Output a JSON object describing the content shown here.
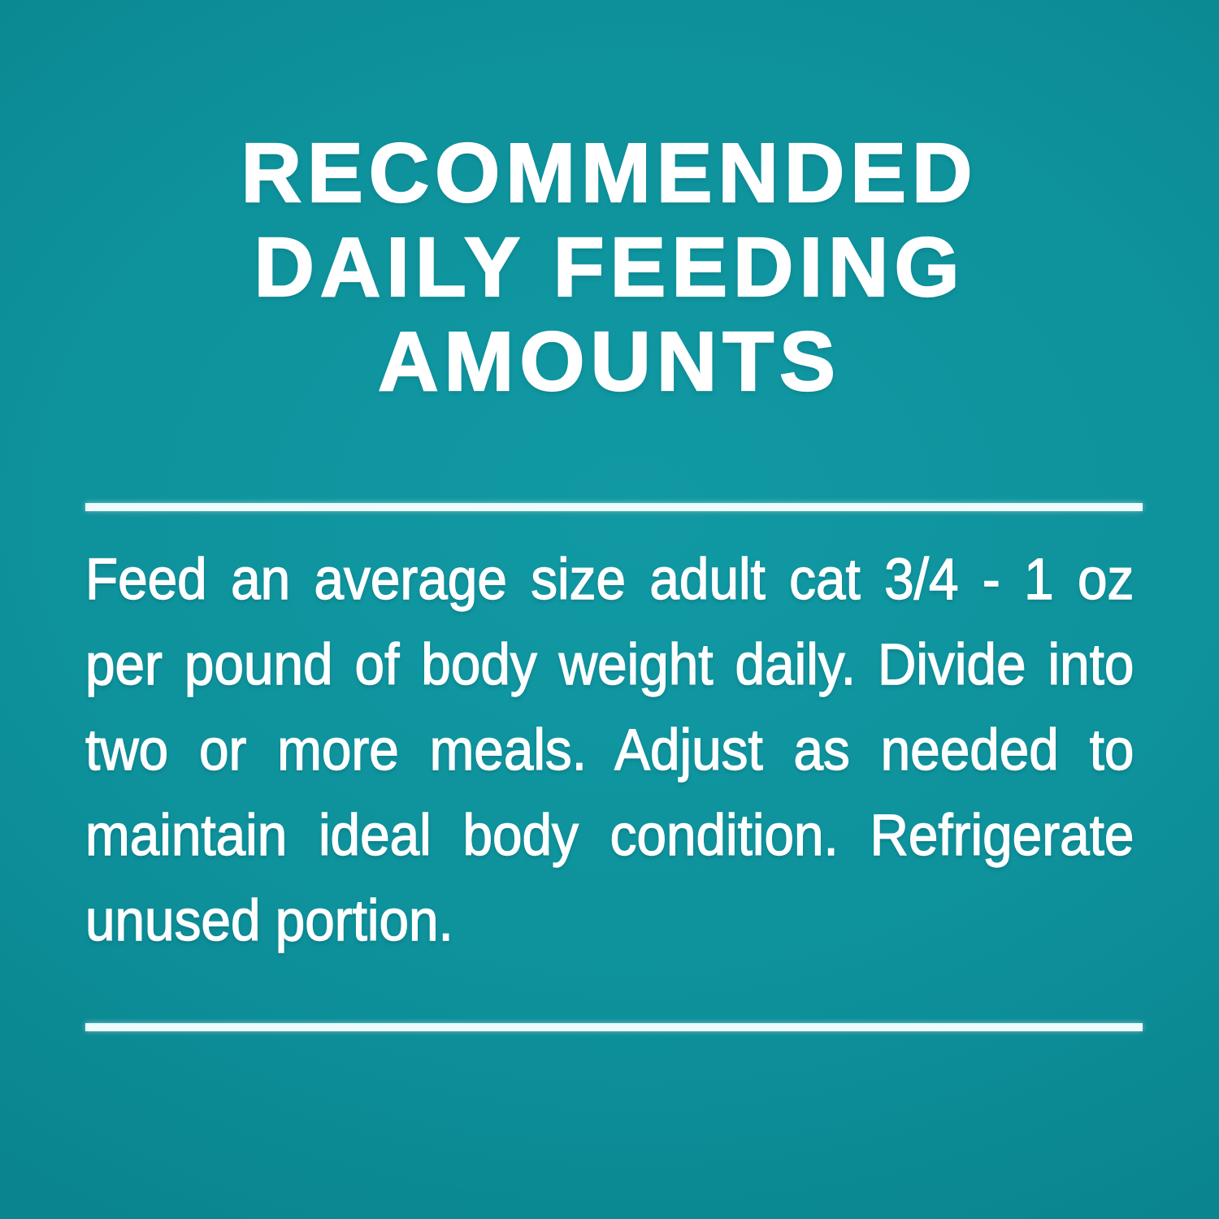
{
  "panel": {
    "background_color": "#0e929c",
    "background_highlight_color": "#1199a3",
    "background_edge_color": "#0a858f",
    "text_color": "#ffffff",
    "rule_color": "#eefcfd"
  },
  "title": {
    "lines": [
      "RECOMMENDED",
      "DAILY FEEDING",
      "AMOUNTS"
    ]
  },
  "body": {
    "lines": [
      "Feed an average size adult cat 3/4 - 1 oz",
      "per pound of body weight daily. Divide into",
      "two or more meals. Adjust as needed to",
      "maintain ideal body condition. Refrigerate",
      "unused portion."
    ]
  }
}
